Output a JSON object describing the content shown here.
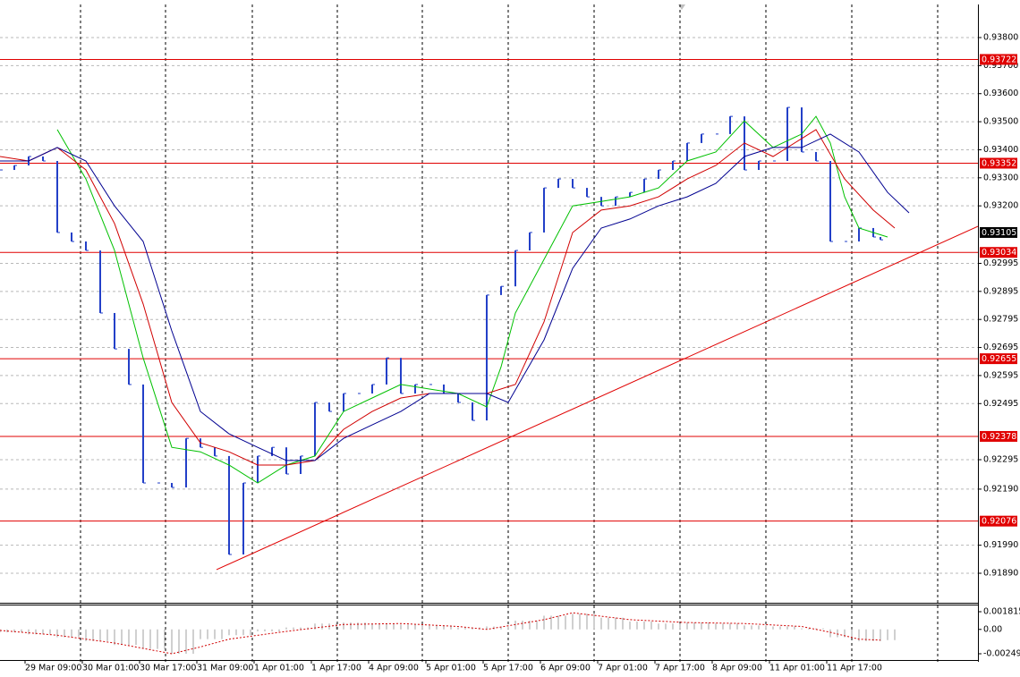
{
  "chart_data": [
    {
      "type": "price",
      "xlim": [
        0,
        273.25
      ],
      "ylim": [
        0.91788,
        0.93918
      ],
      "yticks": [
        {
          "value": 0.938,
          "label": "0.93800"
        },
        {
          "value": 0.937,
          "label": "0.93700"
        },
        {
          "value": 0.936,
          "label": "0.93600"
        },
        {
          "value": 0.935,
          "label": "0.93500"
        },
        {
          "value": 0.934,
          "label": "0.93400"
        },
        {
          "value": 0.933,
          "label": "0.93300"
        },
        {
          "value": 0.932,
          "label": "0.93200"
        },
        {
          "value": 0.92995,
          "label": "0.92995"
        },
        {
          "value": 0.92895,
          "label": "0.92895"
        },
        {
          "value": 0.92795,
          "label": "0.92795"
        },
        {
          "value": 0.92695,
          "label": "0.92695"
        },
        {
          "value": 0.92595,
          "label": "0.92595"
        },
        {
          "value": 0.92495,
          "label": "0.92495"
        },
        {
          "value": 0.92295,
          "label": "0.92295"
        },
        {
          "value": 0.9219,
          "label": "0.92190"
        },
        {
          "value": 0.9199,
          "label": "0.91990"
        },
        {
          "value": 0.9189,
          "label": "0.91890"
        }
      ],
      "xticks": [
        {
          "value": 7,
          "label": "29 Mar 09:00"
        },
        {
          "value": 23,
          "label": "30 Mar 01:00"
        },
        {
          "value": 39,
          "label": "30 Mar 17:00"
        },
        {
          "value": 55,
          "label": "31 Mar 09:00"
        },
        {
          "value": 71,
          "label": "1 Apr 01:00"
        },
        {
          "value": 87,
          "label": "1 Apr 17:00"
        },
        {
          "value": 103,
          "label": "4 Apr 09:00"
        },
        {
          "value": 119,
          "label": "5 Apr 01:00"
        },
        {
          "value": 135,
          "label": "5 Apr 17:00"
        },
        {
          "value": 151,
          "label": "6 Apr 09:00"
        },
        {
          "value": 167,
          "label": "7 Apr 01:00"
        },
        {
          "value": 183,
          "label": "7 Apr 17:00"
        },
        {
          "value": 199,
          "label": "8 Apr 09:00"
        },
        {
          "value": 215,
          "label": "11 Apr 01:00"
        },
        {
          "value": 231,
          "label": "11 Apr 17:00"
        }
      ],
      "xgrid": [
        22.5,
        46.25,
        70.5,
        94.25,
        118,
        142,
        166,
        190,
        214,
        238,
        262
      ],
      "grid": true,
      "series": [
        {
          "style": "bars",
          "color": "#2340c8",
          "x": [
            0,
            4,
            8,
            12,
            16,
            20,
            24,
            28,
            32,
            36,
            40,
            44,
            48,
            52,
            56,
            60,
            64,
            68,
            72,
            76,
            80,
            84,
            88,
            92,
            96,
            100,
            104,
            108,
            112,
            116,
            120,
            124,
            128,
            132,
            136,
            140,
            144,
            148,
            152,
            156,
            160,
            164,
            168,
            172,
            176,
            180,
            184,
            188,
            192,
            196,
            200,
            204,
            208,
            212,
            216,
            220,
            224,
            228,
            232,
            236,
            240,
            244,
            246
          ],
          "values": [
            0.93328,
            0.93344,
            0.93376,
            0.9336,
            0.93105,
            0.93073,
            0.93041,
            0.92818,
            0.9269,
            0.92563,
            0.92212,
            0.92212,
            0.92196,
            0.92371,
            0.92339,
            0.92308,
            0.91957,
            0.92212,
            0.92308,
            0.92339,
            0.92244,
            0.92308,
            0.92499,
            0.92467,
            0.92531,
            0.92531,
            0.92563,
            0.92658,
            0.92531,
            0.92563,
            0.92563,
            0.92531,
            0.92499,
            0.92435,
            0.92882,
            0.92913,
            0.93041,
            0.93105,
            0.93264,
            0.93296,
            0.93264,
            0.93232,
            0.932,
            0.93232,
            0.93248,
            0.93296,
            0.93328,
            0.9336,
            0.93424,
            0.93456,
            0.93456,
            0.93519,
            0.93328,
            0.9336,
            0.9336,
            0.93551,
            0.93392,
            0.9336,
            0.93073,
            0.93073,
            0.93121,
            0.93089,
            0.93079
          ]
        },
        {
          "style": "line",
          "color": "#00c000",
          "x": [
            16,
            24,
            32,
            40,
            48,
            56,
            64,
            72,
            80,
            88,
            96,
            104,
            112,
            120,
            128,
            136,
            140,
            144,
            152,
            160,
            168,
            176,
            184,
            192,
            200,
            208,
            216,
            224,
            228,
            232,
            236,
            240,
            248
          ],
          "values": [
            0.93472,
            0.93296,
            0.93041,
            0.92658,
            0.92339,
            0.92323,
            0.92276,
            0.92212,
            0.92276,
            0.92308,
            0.92467,
            0.92515,
            0.92563,
            0.92547,
            0.92531,
            0.92483,
            0.92626,
            0.92818,
            0.93009,
            0.932,
            0.93216,
            0.93232,
            0.93264,
            0.9336,
            0.93392,
            0.93503,
            0.93408,
            0.93456,
            0.93519,
            0.93424,
            0.93232,
            0.93121,
            0.93089
          ]
        },
        {
          "style": "line",
          "color": "#d00000",
          "x": [
            0,
            8,
            16,
            24,
            32,
            40,
            48,
            56,
            64,
            72,
            80,
            88,
            96,
            104,
            112,
            120,
            128,
            136,
            144,
            152,
            160,
            168,
            176,
            184,
            192,
            200,
            208,
            216,
            224,
            228,
            236,
            244,
            250
          ],
          "values": [
            0.93376,
            0.9336,
            0.93408,
            0.93328,
            0.93137,
            0.9285,
            0.92499,
            0.92355,
            0.92323,
            0.92276,
            0.92276,
            0.92292,
            0.92403,
            0.92467,
            0.92515,
            0.92531,
            0.92531,
            0.92531,
            0.92563,
            0.92786,
            0.93105,
            0.93185,
            0.932,
            0.93232,
            0.93296,
            0.93344,
            0.93424,
            0.93376,
            0.9344,
            0.93472,
            0.93296,
            0.93185,
            0.93121
          ]
        },
        {
          "style": "line",
          "color": "#000090",
          "x": [
            0,
            8,
            16,
            24,
            32,
            40,
            48,
            56,
            64,
            72,
            80,
            88,
            96,
            104,
            112,
            120,
            128,
            136,
            142,
            152,
            160,
            168,
            176,
            184,
            192,
            200,
            208,
            216,
            224,
            232,
            240,
            248,
            254
          ],
          "values": [
            0.9336,
            0.9336,
            0.93408,
            0.9336,
            0.932,
            0.93073,
            0.92754,
            0.92467,
            0.92387,
            0.92339,
            0.92292,
            0.92292,
            0.92371,
            0.92419,
            0.92467,
            0.92531,
            0.92531,
            0.92531,
            0.92499,
            0.92722,
            0.92977,
            0.93121,
            0.93153,
            0.932,
            0.93232,
            0.9328,
            0.93376,
            0.93408,
            0.93408,
            0.93456,
            0.93392,
            0.93248,
            0.93175
          ]
        }
      ],
      "trendline": {
        "color": "#e00000",
        "x": [
          60.5,
          273.25
        ],
        "values": [
          0.91903,
          0.93127
        ]
      },
      "levels": [
        {
          "value": 0.93722,
          "label": "0.93722"
        },
        {
          "value": 0.93352,
          "label": "0.93352"
        },
        {
          "value": 0.93034,
          "label": "0.93034"
        },
        {
          "value": 0.92655,
          "label": "0.92655"
        },
        {
          "value": 0.92378,
          "label": "0.92378"
        },
        {
          "value": 0.92076,
          "label": "0.92076"
        }
      ],
      "level_color": "#e00000",
      "current_price": {
        "value": 0.93105,
        "label": "0.93105"
      }
    },
    {
      "type": "oscillator",
      "xlim": [
        0,
        273.25
      ],
      "ylim": [
        -0.003141,
        0.002457
      ],
      "yticks": [
        0.001815,
        {
          "value": 0,
          "label": "0.00"
        },
        -0.002499
      ],
      "series": [
        {
          "style": "histogram",
          "color": "#a0a0a0",
          "x": [
            0,
            8,
            16,
            24,
            32,
            40,
            48,
            56,
            64,
            72,
            80,
            88,
            96,
            104,
            112,
            120,
            128,
            136,
            144,
            152,
            160,
            168,
            176,
            184,
            192,
            200,
            208,
            216,
            224,
            232,
            240,
            246
          ],
          "values": [
            -0.0003,
            -0.0005,
            -0.0008,
            -0.0012,
            -0.0016,
            -0.002,
            -0.0025,
            -0.001,
            -0.0006,
            -0.0002,
            0.0002,
            0.0006,
            0.0007,
            0.0006,
            0.0005,
            0.0004,
            0.0002,
            0.0003,
            0.0009,
            0.0014,
            0.0016,
            0.0012,
            0.0008,
            0.0006,
            0.0007,
            0.0006,
            0.0004,
            0.0003,
            0.0001,
            -0.0008,
            -0.0012,
            -0.0011
          ]
        },
        {
          "style": "dotted",
          "color": "#d00000",
          "x": [
            0,
            16,
            32,
            48,
            56,
            64,
            80,
            96,
            112,
            128,
            136,
            152,
            160,
            176,
            192,
            208,
            224,
            232,
            240,
            246
          ],
          "values": [
            -0.0001,
            -0.0006,
            -0.0014,
            -0.0025,
            -0.0018,
            -0.001,
            -0.0002,
            0.0005,
            0.0006,
            0.0003,
            0,
            0.001,
            0.0017,
            0.001,
            0.0007,
            0.0006,
            0.0003,
            -0.0003,
            -0.001,
            -0.0011
          ]
        }
      ]
    }
  ]
}
